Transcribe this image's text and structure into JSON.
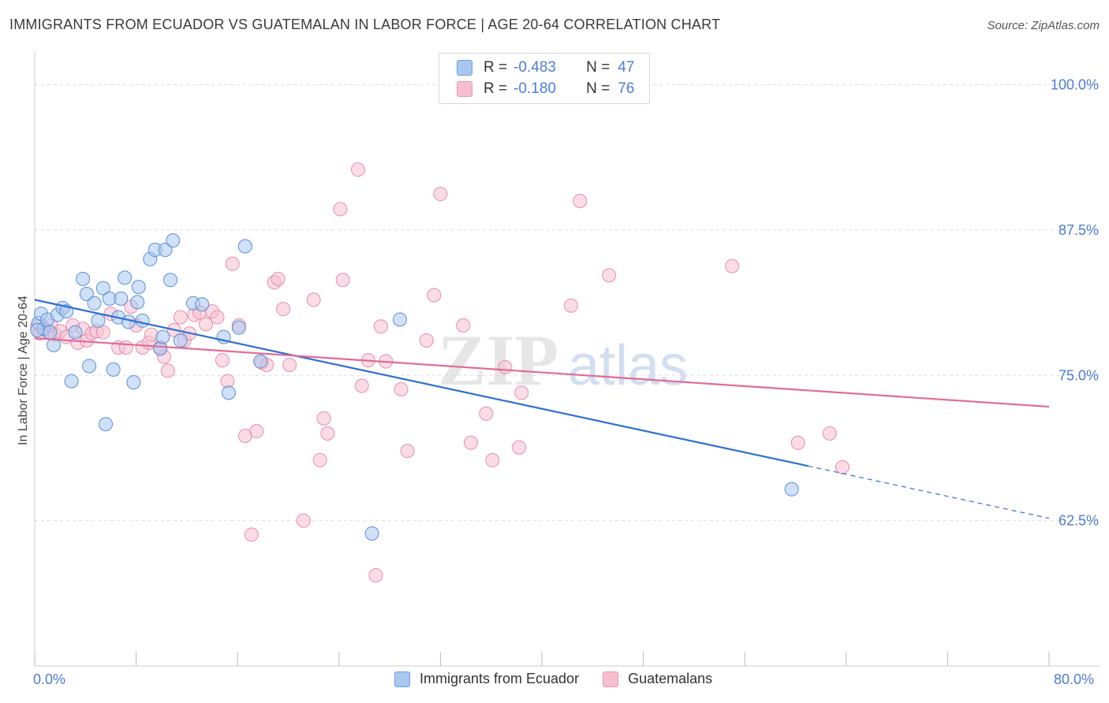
{
  "title": "IMMIGRANTS FROM ECUADOR VS GUATEMALAN IN LABOR FORCE | AGE 20-64 CORRELATION CHART",
  "source": "Source: ZipAtlas.com",
  "watermark": {
    "zip": "ZIP",
    "atlas": "atlas"
  },
  "legend": {
    "r_label": "R =",
    "n_label": "N =",
    "rows": [
      {
        "r": "-0.483",
        "n": "47",
        "color": "#a9c8f0",
        "border": "#6f9ee0"
      },
      {
        "r": "-0.180",
        "n": "76",
        "color": "#f6bfd0",
        "border": "#e899b2"
      }
    ]
  },
  "bottom_legend": [
    "Immigrants from Ecuador",
    "Guatemalans"
  ],
  "x_tick_labels": {
    "min": "0.0%",
    "max": "80.0%"
  },
  "colors": {
    "blue_fill": "#a9c8f0",
    "blue_stroke": "#5b8fd8",
    "blue_line": "#2f6fd0",
    "pink_fill": "#f6bfd0",
    "pink_stroke": "#e48fac",
    "pink_line": "#e26a96",
    "axis_text": "#4d7cd6"
  },
  "chart_data": {
    "type": "scatter",
    "title": "IMMIGRANTS FROM ECUADOR VS GUATEMALAN IN LABOR FORCE | AGE 20-64 CORRELATION CHART",
    "xlabel": "",
    "ylabel": "In Labor Force | Age 20-64",
    "xlim": [
      0,
      80
    ],
    "ylim": [
      50,
      102
    ],
    "y_ticks": [
      {
        "value": 100,
        "label": "100.0%"
      },
      {
        "value": 87.5,
        "label": "87.5%"
      },
      {
        "value": 75,
        "label": "75.0%"
      },
      {
        "value": 62.5,
        "label": "62.5%"
      }
    ],
    "grid": true,
    "legend_position": "top-center",
    "series": [
      {
        "name": "Immigrants from Ecuador",
        "r": -0.483,
        "n": 47,
        "trend": {
          "x0": 0,
          "y0": 81.5,
          "x1": 61,
          "y1": 67.2,
          "dash_to_x": 80,
          "dash_to_y": 62.7
        },
        "points": [
          [
            0.3,
            79.5
          ],
          [
            0.5,
            80.3
          ],
          [
            0.7,
            79.0
          ],
          [
            1.0,
            79.8
          ],
          [
            1.2,
            78.7
          ],
          [
            1.5,
            77.6
          ],
          [
            1.8,
            80.2
          ],
          [
            2.2,
            80.8
          ],
          [
            2.5,
            80.5
          ],
          [
            2.9,
            74.5
          ],
          [
            3.2,
            78.7
          ],
          [
            3.8,
            83.3
          ],
          [
            4.1,
            82.0
          ],
          [
            4.3,
            75.8
          ],
          [
            4.7,
            81.2
          ],
          [
            5.0,
            79.7
          ],
          [
            5.4,
            82.5
          ],
          [
            5.6,
            70.8
          ],
          [
            5.9,
            81.6
          ],
          [
            6.2,
            75.5
          ],
          [
            6.6,
            80.0
          ],
          [
            6.8,
            81.6
          ],
          [
            7.1,
            83.4
          ],
          [
            7.4,
            79.6
          ],
          [
            7.8,
            74.4
          ],
          [
            8.1,
            81.3
          ],
          [
            8.2,
            82.6
          ],
          [
            8.5,
            79.7
          ],
          [
            9.1,
            85.0
          ],
          [
            9.5,
            85.8
          ],
          [
            9.9,
            77.3
          ],
          [
            10.1,
            78.3
          ],
          [
            10.3,
            85.8
          ],
          [
            10.7,
            83.2
          ],
          [
            10.9,
            86.6
          ],
          [
            11.5,
            78.0
          ],
          [
            12.5,
            81.2
          ],
          [
            13.2,
            81.1
          ],
          [
            14.9,
            78.3
          ],
          [
            15.3,
            73.5
          ],
          [
            16.1,
            79.1
          ],
          [
            16.6,
            86.1
          ],
          [
            17.8,
            76.2
          ],
          [
            26.6,
            61.4
          ],
          [
            28.8,
            79.8
          ],
          [
            59.7,
            65.2
          ],
          [
            0.2,
            78.9
          ]
        ]
      },
      {
        "name": "Guatemalans",
        "r": -0.18,
        "n": 76,
        "trend": {
          "x0": 0,
          "y0": 78.2,
          "x1": 80,
          "y1": 72.3
        },
        "points": [
          [
            0.2,
            79.2
          ],
          [
            0.4,
            78.6
          ],
          [
            0.7,
            79.0
          ],
          [
            1.0,
            78.8
          ],
          [
            1.3,
            79.3
          ],
          [
            1.6,
            78.5
          ],
          [
            2.0,
            78.8
          ],
          [
            2.5,
            78.3
          ],
          [
            3.0,
            79.3
          ],
          [
            3.4,
            77.8
          ],
          [
            3.8,
            79.0
          ],
          [
            4.1,
            78.0
          ],
          [
            4.5,
            78.6
          ],
          [
            4.9,
            78.8
          ],
          [
            5.4,
            78.7
          ],
          [
            6.0,
            80.3
          ],
          [
            6.6,
            77.4
          ],
          [
            7.2,
            77.4
          ],
          [
            7.6,
            80.9
          ],
          [
            8.0,
            79.3
          ],
          [
            8.5,
            77.4
          ],
          [
            9.0,
            77.8
          ],
          [
            9.2,
            78.5
          ],
          [
            9.9,
            77.4
          ],
          [
            10.2,
            76.6
          ],
          [
            10.5,
            75.4
          ],
          [
            11.0,
            78.9
          ],
          [
            11.5,
            80.0
          ],
          [
            11.8,
            78.0
          ],
          [
            12.2,
            78.6
          ],
          [
            12.6,
            80.2
          ],
          [
            13.0,
            80.4
          ],
          [
            13.5,
            79.4
          ],
          [
            14.0,
            80.5
          ],
          [
            14.4,
            80.0
          ],
          [
            14.8,
            76.3
          ],
          [
            15.2,
            74.5
          ],
          [
            15.6,
            84.6
          ],
          [
            16.1,
            79.3
          ],
          [
            16.6,
            69.8
          ],
          [
            17.1,
            61.3
          ],
          [
            17.5,
            70.2
          ],
          [
            17.9,
            76.1
          ],
          [
            18.3,
            75.9
          ],
          [
            18.9,
            83.0
          ],
          [
            19.2,
            83.3
          ],
          [
            19.6,
            80.7
          ],
          [
            20.1,
            75.9
          ],
          [
            21.2,
            62.5
          ],
          [
            22.0,
            81.5
          ],
          [
            22.5,
            67.7
          ],
          [
            22.8,
            71.3
          ],
          [
            23.1,
            70.0
          ],
          [
            24.1,
            89.3
          ],
          [
            24.3,
            83.2
          ],
          [
            25.5,
            92.7
          ],
          [
            25.8,
            74.1
          ],
          [
            26.3,
            76.3
          ],
          [
            26.9,
            57.8
          ],
          [
            27.3,
            79.2
          ],
          [
            27.7,
            76.2
          ],
          [
            28.9,
            73.8
          ],
          [
            29.4,
            68.5
          ],
          [
            30.9,
            78.0
          ],
          [
            31.5,
            81.9
          ],
          [
            32.0,
            90.6
          ],
          [
            33.8,
            79.3
          ],
          [
            34.4,
            69.2
          ],
          [
            35.6,
            71.7
          ],
          [
            36.1,
            67.7
          ],
          [
            37.1,
            75.7
          ],
          [
            38.2,
            68.8
          ],
          [
            38.4,
            73.5
          ],
          [
            42.3,
            81.0
          ],
          [
            43.0,
            90.0
          ],
          [
            45.3,
            83.6
          ]
        ]
      }
    ],
    "extra_points_series2": [
      [
        55.0,
        84.4
      ],
      [
        60.2,
        69.2
      ],
      [
        62.7,
        70.0
      ],
      [
        63.7,
        67.1
      ]
    ]
  }
}
